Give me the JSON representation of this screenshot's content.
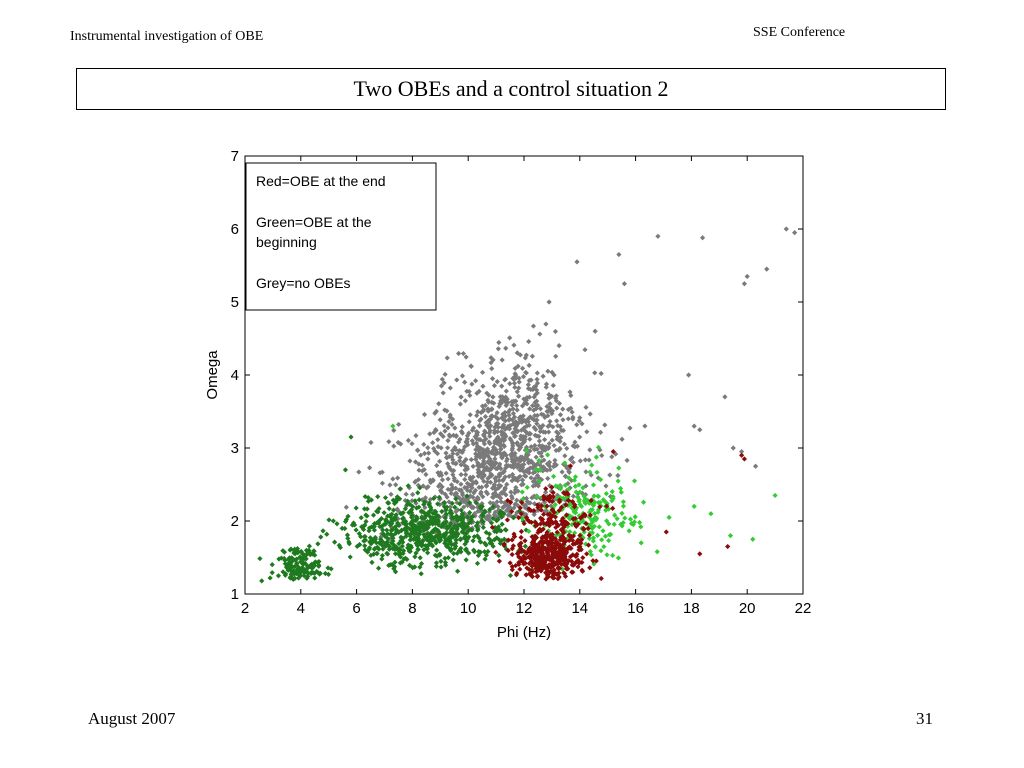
{
  "header": {
    "left": "Instrumental investigation of OBE",
    "right": "SSE Conference"
  },
  "slide": {
    "title": "Two OBEs and a control situation 2"
  },
  "footer": {
    "left": "August 2007",
    "right": "31"
  },
  "colors": {
    "grey": "#7a7a7a",
    "green_dark": "#1f7a1f",
    "green_light": "#33cc33",
    "red": "#8b0a0a"
  },
  "chart_data": {
    "type": "scatter",
    "xlabel": "Phi (Hz)",
    "ylabel": "Omega",
    "xlim": [
      2,
      22
    ],
    "ylim": [
      1,
      7
    ],
    "xticks": [
      2,
      4,
      6,
      8,
      10,
      12,
      14,
      16,
      18,
      20,
      22
    ],
    "yticks": [
      1,
      2,
      3,
      4,
      5,
      6,
      7
    ],
    "legend": {
      "position": "top-left",
      "lines": [
        "Red=OBE at the end",
        "Green=OBE at the",
        "beginning",
        "Grey=no OBEs"
      ]
    },
    "series": [
      {
        "name": "Grey=no OBEs",
        "color": "#7a7a7a",
        "clusters": [
          {
            "cx": 11.5,
            "cy": 3.0,
            "sx": 2.4,
            "sy": 0.6,
            "n": 900
          },
          {
            "cx": 9.5,
            "cy": 2.4,
            "sx": 2.5,
            "sy": 0.5,
            "n": 300
          }
        ],
        "points": [
          [
            21.4,
            6.0
          ],
          [
            21.7,
            5.95
          ],
          [
            16.8,
            5.9
          ],
          [
            18.4,
            5.88
          ],
          [
            15.4,
            5.65
          ],
          [
            13.9,
            5.55
          ],
          [
            20.0,
            5.35
          ],
          [
            20.7,
            5.45
          ],
          [
            19.9,
            5.25
          ],
          [
            15.6,
            5.25
          ],
          [
            12.9,
            5.0
          ],
          [
            17.9,
            4.0
          ],
          [
            19.2,
            3.7
          ],
          [
            18.1,
            3.3
          ],
          [
            18.3,
            3.25
          ],
          [
            19.8,
            2.95
          ],
          [
            20.3,
            2.75
          ],
          [
            19.5,
            3.0
          ]
        ]
      },
      {
        "name": "Green=OBE at the beginning",
        "color": "#1f7a1f",
        "clusters": [
          {
            "cx": 8.5,
            "cy": 1.85,
            "sx": 2.6,
            "sy": 0.22,
            "n": 650
          },
          {
            "cx": 4.0,
            "cy": 1.4,
            "sx": 0.8,
            "sy": 0.15,
            "n": 150
          }
        ],
        "points": [
          [
            2.6,
            1.18
          ],
          [
            2.9,
            1.22
          ],
          [
            3.2,
            1.25
          ],
          [
            5.8,
            3.15
          ],
          [
            5.6,
            2.7
          ]
        ]
      },
      {
        "name": "Green=OBE at the beginning",
        "color": "#33cc33",
        "clusters": [
          {
            "cx": 14.0,
            "cy": 2.1,
            "sx": 1.8,
            "sy": 0.3,
            "n": 220
          }
        ],
        "points": [
          [
            21.0,
            2.35
          ],
          [
            20.2,
            1.75
          ],
          [
            19.4,
            1.8
          ],
          [
            18.7,
            2.1
          ],
          [
            18.1,
            2.2
          ],
          [
            17.2,
            2.05
          ],
          [
            16.2,
            1.7
          ],
          [
            7.3,
            3.3
          ]
        ]
      },
      {
        "name": "Red=OBE at the end",
        "color": "#8b0a0a",
        "clusters": [
          {
            "cx": 12.8,
            "cy": 1.5,
            "sx": 1.1,
            "sy": 0.15,
            "n": 320
          },
          {
            "cx": 13.2,
            "cy": 1.9,
            "sx": 1.2,
            "sy": 0.3,
            "n": 200
          }
        ],
        "points": [
          [
            19.8,
            2.9
          ],
          [
            19.9,
            2.85
          ],
          [
            18.3,
            1.55
          ],
          [
            19.3,
            1.65
          ],
          [
            17.1,
            1.85
          ],
          [
            15.2,
            2.95
          ]
        ]
      }
    ]
  }
}
